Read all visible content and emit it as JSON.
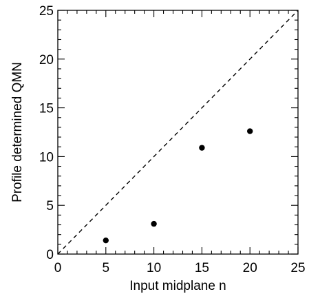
{
  "chart_data": {
    "type": "scatter",
    "title": "",
    "xlabel": "Input midplane n",
    "ylabel": "Profile determined QMN",
    "xlim": [
      0,
      25
    ],
    "ylim": [
      0,
      25
    ],
    "x_major_ticks": [
      0,
      5,
      10,
      15,
      20,
      25
    ],
    "y_major_ticks": [
      0,
      5,
      10,
      15,
      20,
      25
    ],
    "x_tick_labels": [
      "0",
      "5",
      "10",
      "15",
      "20",
      "25"
    ],
    "y_tick_labels": [
      "0",
      "5",
      "10",
      "15",
      "20",
      "25"
    ],
    "minor_tick_step": 1,
    "grid": false,
    "series": [
      {
        "marker": "filled-circle",
        "color": "#000000",
        "x": [
          5,
          10,
          15,
          20
        ],
        "y": [
          1.4,
          3.1,
          10.9,
          12.6
        ]
      }
    ],
    "reference_line": {
      "style": "dashed",
      "color": "#000000",
      "from": [
        0,
        0
      ],
      "to": [
        25,
        25
      ]
    }
  }
}
